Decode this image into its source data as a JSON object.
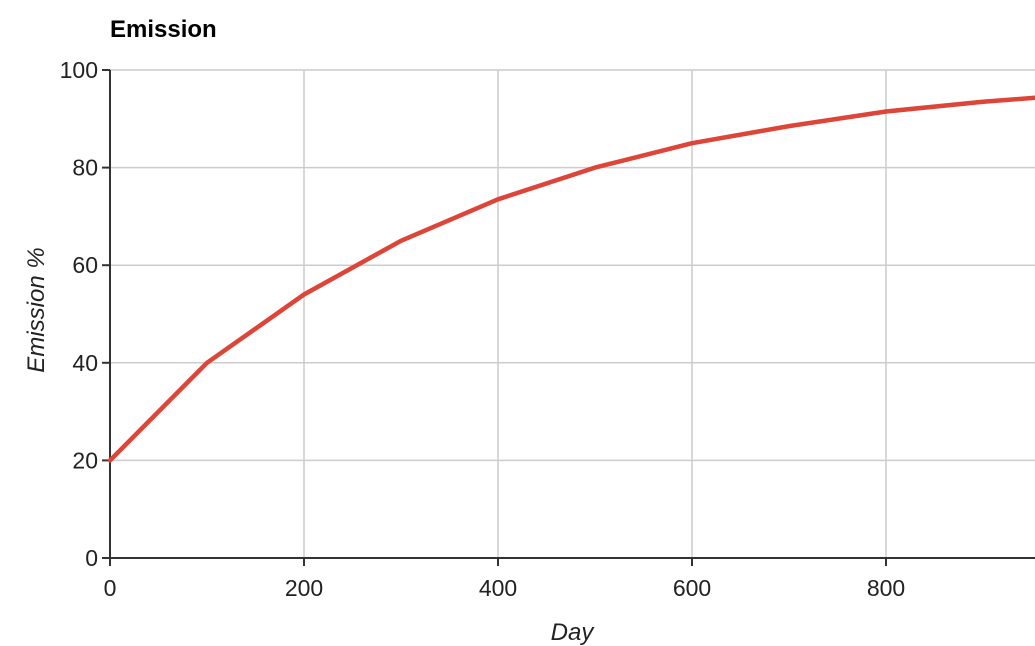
{
  "chart_data": {
    "type": "line",
    "title": "Emission",
    "xlabel": "Day",
    "ylabel": "Emission %",
    "xlim": [
      0,
      1000
    ],
    "ylim": [
      0,
      100
    ],
    "x_ticks": [
      "0",
      "200",
      "400",
      "600",
      "800"
    ],
    "y_ticks": [
      "0",
      "20",
      "40",
      "60",
      "80",
      "100"
    ],
    "x_tick_values": [
      0,
      200,
      400,
      600,
      800
    ],
    "y_tick_values": [
      0,
      20,
      40,
      60,
      80,
      100
    ],
    "grid": true,
    "legend": "none",
    "series": [
      {
        "color": "#dc4537",
        "x": [
          0,
          100,
          200,
          300,
          400,
          500,
          600,
          700,
          800,
          900,
          1000
        ],
        "y": [
          20,
          40,
          54,
          65,
          73.5,
          80,
          85,
          88.5,
          91.5,
          93.5,
          95
        ]
      }
    ]
  }
}
